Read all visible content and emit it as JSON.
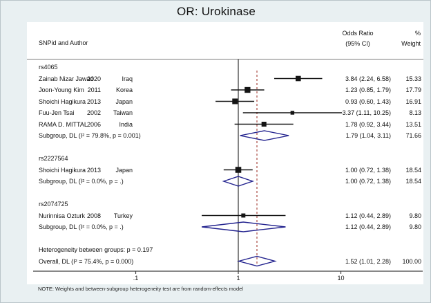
{
  "title": "OR: Urokinase",
  "header": {
    "left": "SNPid and Author",
    "or_line1": "Odds Ratio",
    "or_line2": "(95% CI)",
    "pct": "%",
    "weight": "Weight"
  },
  "note": "NOTE: Weights and between-subgroup heterogeneity test are from random-effects model",
  "colors": {
    "background": "#e9f0f2",
    "plot_bg": "#ffffff",
    "text": "#111111",
    "axis_line": "#404040",
    "ci_line": "#141414",
    "diamond": "#22228e",
    "dashed_overall_line": "#a94a42",
    "header_rule": "#7a7a7a"
  },
  "chart_data": {
    "type": "forest",
    "title": "OR: Urokinase",
    "x_scale": "log10",
    "x_ticks": [
      {
        "label": ".1",
        "value": 0.1
      },
      {
        "label": "1",
        "value": 1
      },
      {
        "label": "10",
        "value": 10
      }
    ],
    "null_line_value": 1,
    "overall_dashed_value": 1.52,
    "rows": [
      {
        "type": "group",
        "label": "rs4065"
      },
      {
        "type": "study",
        "name": "Zainab Nizar Jawad",
        "year": "2020",
        "country": "Iraq",
        "est": 3.84,
        "lo": 2.24,
        "hi": 6.58,
        "ci_text": "3.84 (2.24, 6.58)",
        "weight": 15.33,
        "weight_text": "15.33"
      },
      {
        "type": "study",
        "name": "Joon-Young Kim",
        "year": "2011",
        "country": "Korea",
        "est": 1.23,
        "lo": 0.85,
        "hi": 1.79,
        "ci_text": "1.23 (0.85, 1.79)",
        "weight": 17.79,
        "weight_text": "17.79"
      },
      {
        "type": "study",
        "name": "Shoichi Hagikura",
        "year": "2013",
        "country": "Japan",
        "est": 0.93,
        "lo": 0.6,
        "hi": 1.43,
        "ci_text": "0.93 (0.60, 1.43)",
        "weight": 16.91,
        "weight_text": "16.91"
      },
      {
        "type": "study",
        "name": "Fuu-Jen Tsai",
        "year": "2002",
        "country": "Taiwan",
        "est": 3.37,
        "lo": 1.11,
        "hi": 10.25,
        "ci_text": "3.37 (1.11, 10.25)",
        "weight": 8.13,
        "weight_text": "8.13"
      },
      {
        "type": "study",
        "name": "RAMA D. MITTAL",
        "year": "2006",
        "country": "India",
        "est": 1.78,
        "lo": 0.92,
        "hi": 3.44,
        "ci_text": "1.78 (0.92, 3.44)",
        "weight": 13.51,
        "weight_text": "13.51"
      },
      {
        "type": "subgroup",
        "label": "Subgroup, DL (I² = 79.8%, p = 0.001)",
        "est": 1.79,
        "lo": 1.04,
        "hi": 3.11,
        "ci_text": "1.79 (1.04, 3.11)",
        "weight_text": "71.66"
      },
      {
        "type": "spacer"
      },
      {
        "type": "group",
        "label": "rs2227564"
      },
      {
        "type": "study",
        "name": "Shoichi Hagikura",
        "year": "2013",
        "country": "Japan",
        "est": 1.0,
        "lo": 0.72,
        "hi": 1.38,
        "ci_text": "1.00 (0.72, 1.38)",
        "weight": 18.54,
        "weight_text": "18.54"
      },
      {
        "type": "subgroup",
        "label": "Subgroup, DL (I² = 0.0%, p = .)",
        "est": 1.0,
        "lo": 0.72,
        "hi": 1.38,
        "ci_text": "1.00 (0.72, 1.38)",
        "weight_text": "18.54"
      },
      {
        "type": "spacer"
      },
      {
        "type": "group",
        "label": "rs2074725"
      },
      {
        "type": "study",
        "name": "Nurinnisa Ozturk",
        "year": "2008",
        "country": "Turkey",
        "est": 1.12,
        "lo": 0.44,
        "hi": 2.89,
        "ci_text": "1.12 (0.44, 2.89)",
        "weight": 9.8,
        "weight_text": "9.80"
      },
      {
        "type": "subgroup",
        "label": "Subgroup, DL (I² = 0.0%, p = .)",
        "est": 1.12,
        "lo": 0.44,
        "hi": 2.89,
        "ci_text": "1.12 (0.44, 2.89)",
        "weight_text": "9.80"
      },
      {
        "type": "spacer"
      },
      {
        "type": "text",
        "label": "Heterogeneity between groups: p = 0.197"
      },
      {
        "type": "overall",
        "label": "Overall, DL (I² = 75.4%, p = 0.000)",
        "est": 1.52,
        "lo": 1.01,
        "hi": 2.28,
        "ci_text": "1.52 (1.01, 2.28)",
        "weight_text": "100.00"
      }
    ]
  }
}
